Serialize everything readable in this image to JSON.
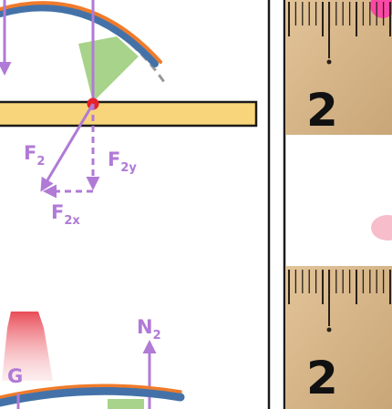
{
  "forces": {
    "f2": {
      "main": "F",
      "sub": "2"
    },
    "f2y": {
      "main": "F",
      "sub": "2y"
    },
    "f2x": {
      "main": "F",
      "sub": "2x"
    },
    "n2": {
      "main": "N",
      "sub": "2"
    },
    "g": {
      "main": "G"
    }
  },
  "ruler": {
    "top_number": "2",
    "bottom_number": "2"
  },
  "colors": {
    "force_arrow": "#b07ad6",
    "beam_fill": "#f8d57a",
    "beam_stroke": "#1a1a1a",
    "arc_blue": "#4472a8",
    "arc_orange": "#f07b2a",
    "contact_green": "#a8d38a",
    "contact_point": "#e8202a",
    "ruler_wood": "#d9b98c"
  }
}
